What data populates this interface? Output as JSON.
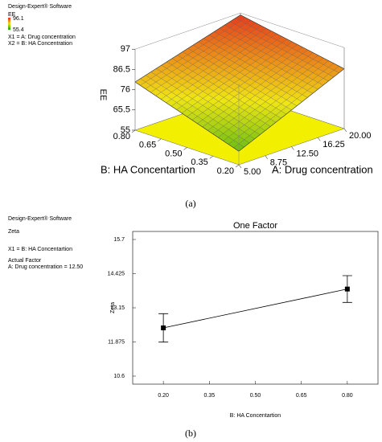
{
  "chart_data": [
    {
      "type": "surface",
      "software": "Design-Expert® Software",
      "legend_title": "EE",
      "legend_range": [
        55.4,
        96.1
      ],
      "info": [
        "X1 = A: Drug concentration",
        "X2 = B: HA Concentration"
      ],
      "zlabel": "EE",
      "xlabel": "A: Drug concentration",
      "ylabel": "B: HA Concentartion",
      "x": [
        5,
        20
      ],
      "y": [
        0.2,
        0.8
      ],
      "z": [
        [
          62,
          86
        ],
        [
          80,
          96
        ]
      ],
      "xlim": [
        5,
        20
      ],
      "ylim": [
        0.2,
        0.8
      ],
      "zlim": [
        55,
        97
      ],
      "xticks": [
        {
          "value": 5,
          "label": "5.00"
        },
        {
          "value": 8.75,
          "label": "8.75"
        },
        {
          "value": 12.5,
          "label": "12.50"
        },
        {
          "value": 16.25,
          "label": "16.25"
        },
        {
          "value": 20,
          "label": "20.00"
        }
      ],
      "yticks": [
        {
          "value": 0.2,
          "label": "0.20"
        },
        {
          "value": 0.35,
          "label": "0.35"
        },
        {
          "value": 0.5,
          "label": "0.50"
        },
        {
          "value": 0.65,
          "label": "0.65"
        },
        {
          "value": 0.8,
          "label": "0.80"
        }
      ],
      "zticks": [
        55,
        65.5,
        76,
        86.5,
        97
      ]
    },
    {
      "type": "line",
      "software": "Design-Expert® Software",
      "response": "Zeta",
      "info": [
        "X1 = B: HA Concentartion",
        "Actual Factor",
        "A: Drug concentration = 12.50"
      ],
      "title": "One Factor",
      "xlabel": "B: HA Concentartion",
      "ylabel": "Zeta",
      "x": [
        0.2,
        0.8
      ],
      "values": [
        12.4,
        13.85
      ],
      "errors": [
        0.53,
        0.5
      ],
      "color": "#000000",
      "xlim": [
        0.1,
        0.9
      ],
      "ylim": [
        10.3,
        16.0
      ],
      "xticks": [
        {
          "value": 0.2,
          "label": "0.20"
        },
        {
          "value": 0.35,
          "label": "0.35"
        },
        {
          "value": 0.5,
          "label": "0.50"
        },
        {
          "value": 0.65,
          "label": "0.65"
        },
        {
          "value": 0.8,
          "label": "0.80"
        }
      ],
      "yticks": [
        10.6,
        11.875,
        13.15,
        14.425,
        15.7
      ]
    }
  ],
  "captions": [
    "(a)",
    "(b)"
  ]
}
